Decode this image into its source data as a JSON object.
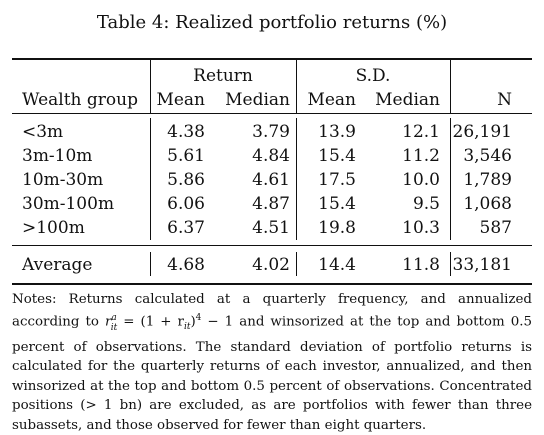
{
  "caption": "Table 4: Realized portfolio returns (%)",
  "headers": {
    "group1": "Return",
    "group2": "S.D.",
    "wealth": "Wealth group",
    "mean1": "Mean",
    "median1": "Median",
    "mean2": "Mean",
    "median2": "Median",
    "n": "N"
  },
  "rows": [
    {
      "group": "<3m",
      "ret_mean": "4.38",
      "ret_median": "3.79",
      "sd_mean": "13.9",
      "sd_median": "12.1",
      "n": "26,191"
    },
    {
      "group": "3m-10m",
      "ret_mean": "5.61",
      "ret_median": "4.84",
      "sd_mean": "15.4",
      "sd_median": "11.2",
      "n": "3,546"
    },
    {
      "group": "10m-30m",
      "ret_mean": "5.86",
      "ret_median": "4.61",
      "sd_mean": "17.5",
      "sd_median": "10.0",
      "n": "1,789"
    },
    {
      "group": "30m-100m",
      "ret_mean": "6.06",
      "ret_median": "4.87",
      "sd_mean": "15.4",
      "sd_median": "9.5",
      "n": "1,068"
    },
    {
      "group": ">100m",
      "ret_mean": "6.37",
      "ret_median": "4.51",
      "sd_mean": "19.8",
      "sd_median": "10.3",
      "n": "587"
    }
  ],
  "average": {
    "group": "Average",
    "ret_mean": "4.68",
    "ret_median": "4.02",
    "sd_mean": "14.4",
    "sd_median": "11.8",
    "n": "33,181"
  },
  "notes": {
    "part1": "Notes: Returns calculated at a quarterly frequency, and annualized according to ",
    "formula": "r",
    "formula_sup": "a",
    "formula_sub": "it",
    "formula_rest": " = (1 + r",
    "formula_sub2": "it",
    "formula_end": ")",
    "formula_pow": "4",
    "formula_tail": " − 1",
    "part2": " and winsorized at the top and bottom 0.5 percent of observations. The standard deviation of portfolio returns is calculated for the quarterly returns of each investor, annualized, and then winsorized at the top and bottom 0.5 percent of observations. Concentrated positions (> 1 bn) are excluded, as are portfolios with fewer than three subassets, and those observed for fewer than eight quarters."
  }
}
